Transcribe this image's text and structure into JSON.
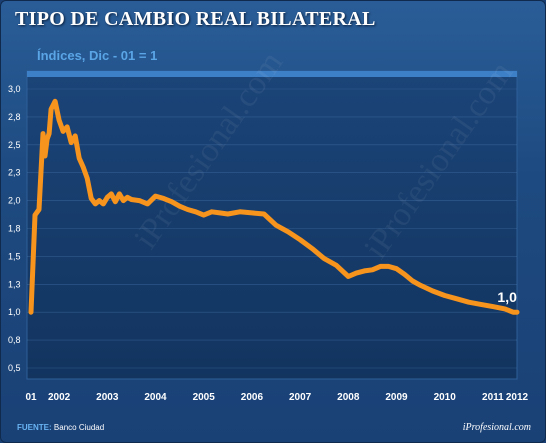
{
  "title": "TIPO DE CAMBIO REAL BILATERAL",
  "subtitle": "Índices, Dic - 01 = 1",
  "source": {
    "label": "FUENTE:",
    "text": "Banco Ciudad"
  },
  "brand": "iProfesional.com",
  "watermark": "iProfesional.com",
  "colors": {
    "line": "#f7941d",
    "plot_bg": "#163a6b",
    "grid": "#4a78b0",
    "frame": "#2a5d97"
  },
  "chart_data": {
    "type": "line",
    "title": "TIPO DE CAMBIO REAL BILATERAL",
    "ylabel": "Índices, Dic - 01 = 1",
    "xlabel": "",
    "ylim": [
      0.5,
      3.0
    ],
    "xlim": [
      2001.917,
      2012.0
    ],
    "grid": true,
    "y_ticks": [
      "0,5",
      "0,8",
      "1,0",
      "1,3",
      "1,5",
      "1,8",
      "2,0",
      "2,3",
      "2,5",
      "2,8",
      "3,0"
    ],
    "y_tick_values": [
      0.5,
      0.75,
      1.0,
      1.25,
      1.5,
      1.75,
      2.0,
      2.25,
      2.5,
      2.75,
      3.0
    ],
    "x_ticks": [
      "01",
      "2002",
      "2003",
      "2004",
      "2005",
      "2006",
      "2007",
      "2008",
      "2009",
      "2010",
      "2011",
      "2012"
    ],
    "x_tick_values": [
      2001.917,
      2002.5,
      2003.5,
      2004.5,
      2005.5,
      2006.5,
      2007.5,
      2008.5,
      2009.5,
      2010.5,
      2011.5,
      2012.0
    ],
    "annotations": [
      {
        "text": "1,0",
        "x": 2011.92,
        "y": 1.0
      }
    ],
    "series": [
      {
        "x": [
          2001.917,
          2002.0,
          2002.083,
          2002.167,
          2002.208,
          2002.25,
          2002.292,
          2002.333,
          2002.417,
          2002.5,
          2002.583,
          2002.667,
          2002.75,
          2002.833,
          2002.917,
          2003.0,
          2003.083,
          2003.167,
          2003.25,
          2003.333,
          2003.417,
          2003.5,
          2003.583,
          2003.667,
          2003.75,
          2003.833,
          2003.917,
          2004.0,
          2004.167,
          2004.333,
          2004.5,
          2004.667,
          2004.833,
          2005.0,
          2005.167,
          2005.333,
          2005.5,
          2005.667,
          2005.833,
          2006.0,
          2006.25,
          2006.5,
          2006.75,
          2007.0,
          2007.25,
          2007.5,
          2007.75,
          2008.0,
          2008.25,
          2008.5,
          2008.667,
          2008.833,
          2009.0,
          2009.167,
          2009.333,
          2009.5,
          2009.667,
          2009.833,
          2010.0,
          2010.25,
          2010.5,
          2010.75,
          2011.0,
          2011.25,
          2011.5,
          2011.75,
          2011.92,
          2012.0
        ],
        "values": [
          1.0,
          1.87,
          1.92,
          2.6,
          2.4,
          2.55,
          2.6,
          2.82,
          2.89,
          2.72,
          2.62,
          2.66,
          2.52,
          2.58,
          2.38,
          2.3,
          2.2,
          2.02,
          1.97,
          2.0,
          1.97,
          2.03,
          2.06,
          1.99,
          2.06,
          2.0,
          2.03,
          2.01,
          2.0,
          1.97,
          2.04,
          2.02,
          1.99,
          1.95,
          1.92,
          1.9,
          1.87,
          1.9,
          1.89,
          1.88,
          1.9,
          1.89,
          1.88,
          1.78,
          1.72,
          1.65,
          1.57,
          1.48,
          1.42,
          1.32,
          1.35,
          1.37,
          1.38,
          1.41,
          1.41,
          1.39,
          1.34,
          1.28,
          1.24,
          1.19,
          1.15,
          1.12,
          1.09,
          1.07,
          1.05,
          1.03,
          1.0,
          1.0
        ]
      }
    ]
  }
}
